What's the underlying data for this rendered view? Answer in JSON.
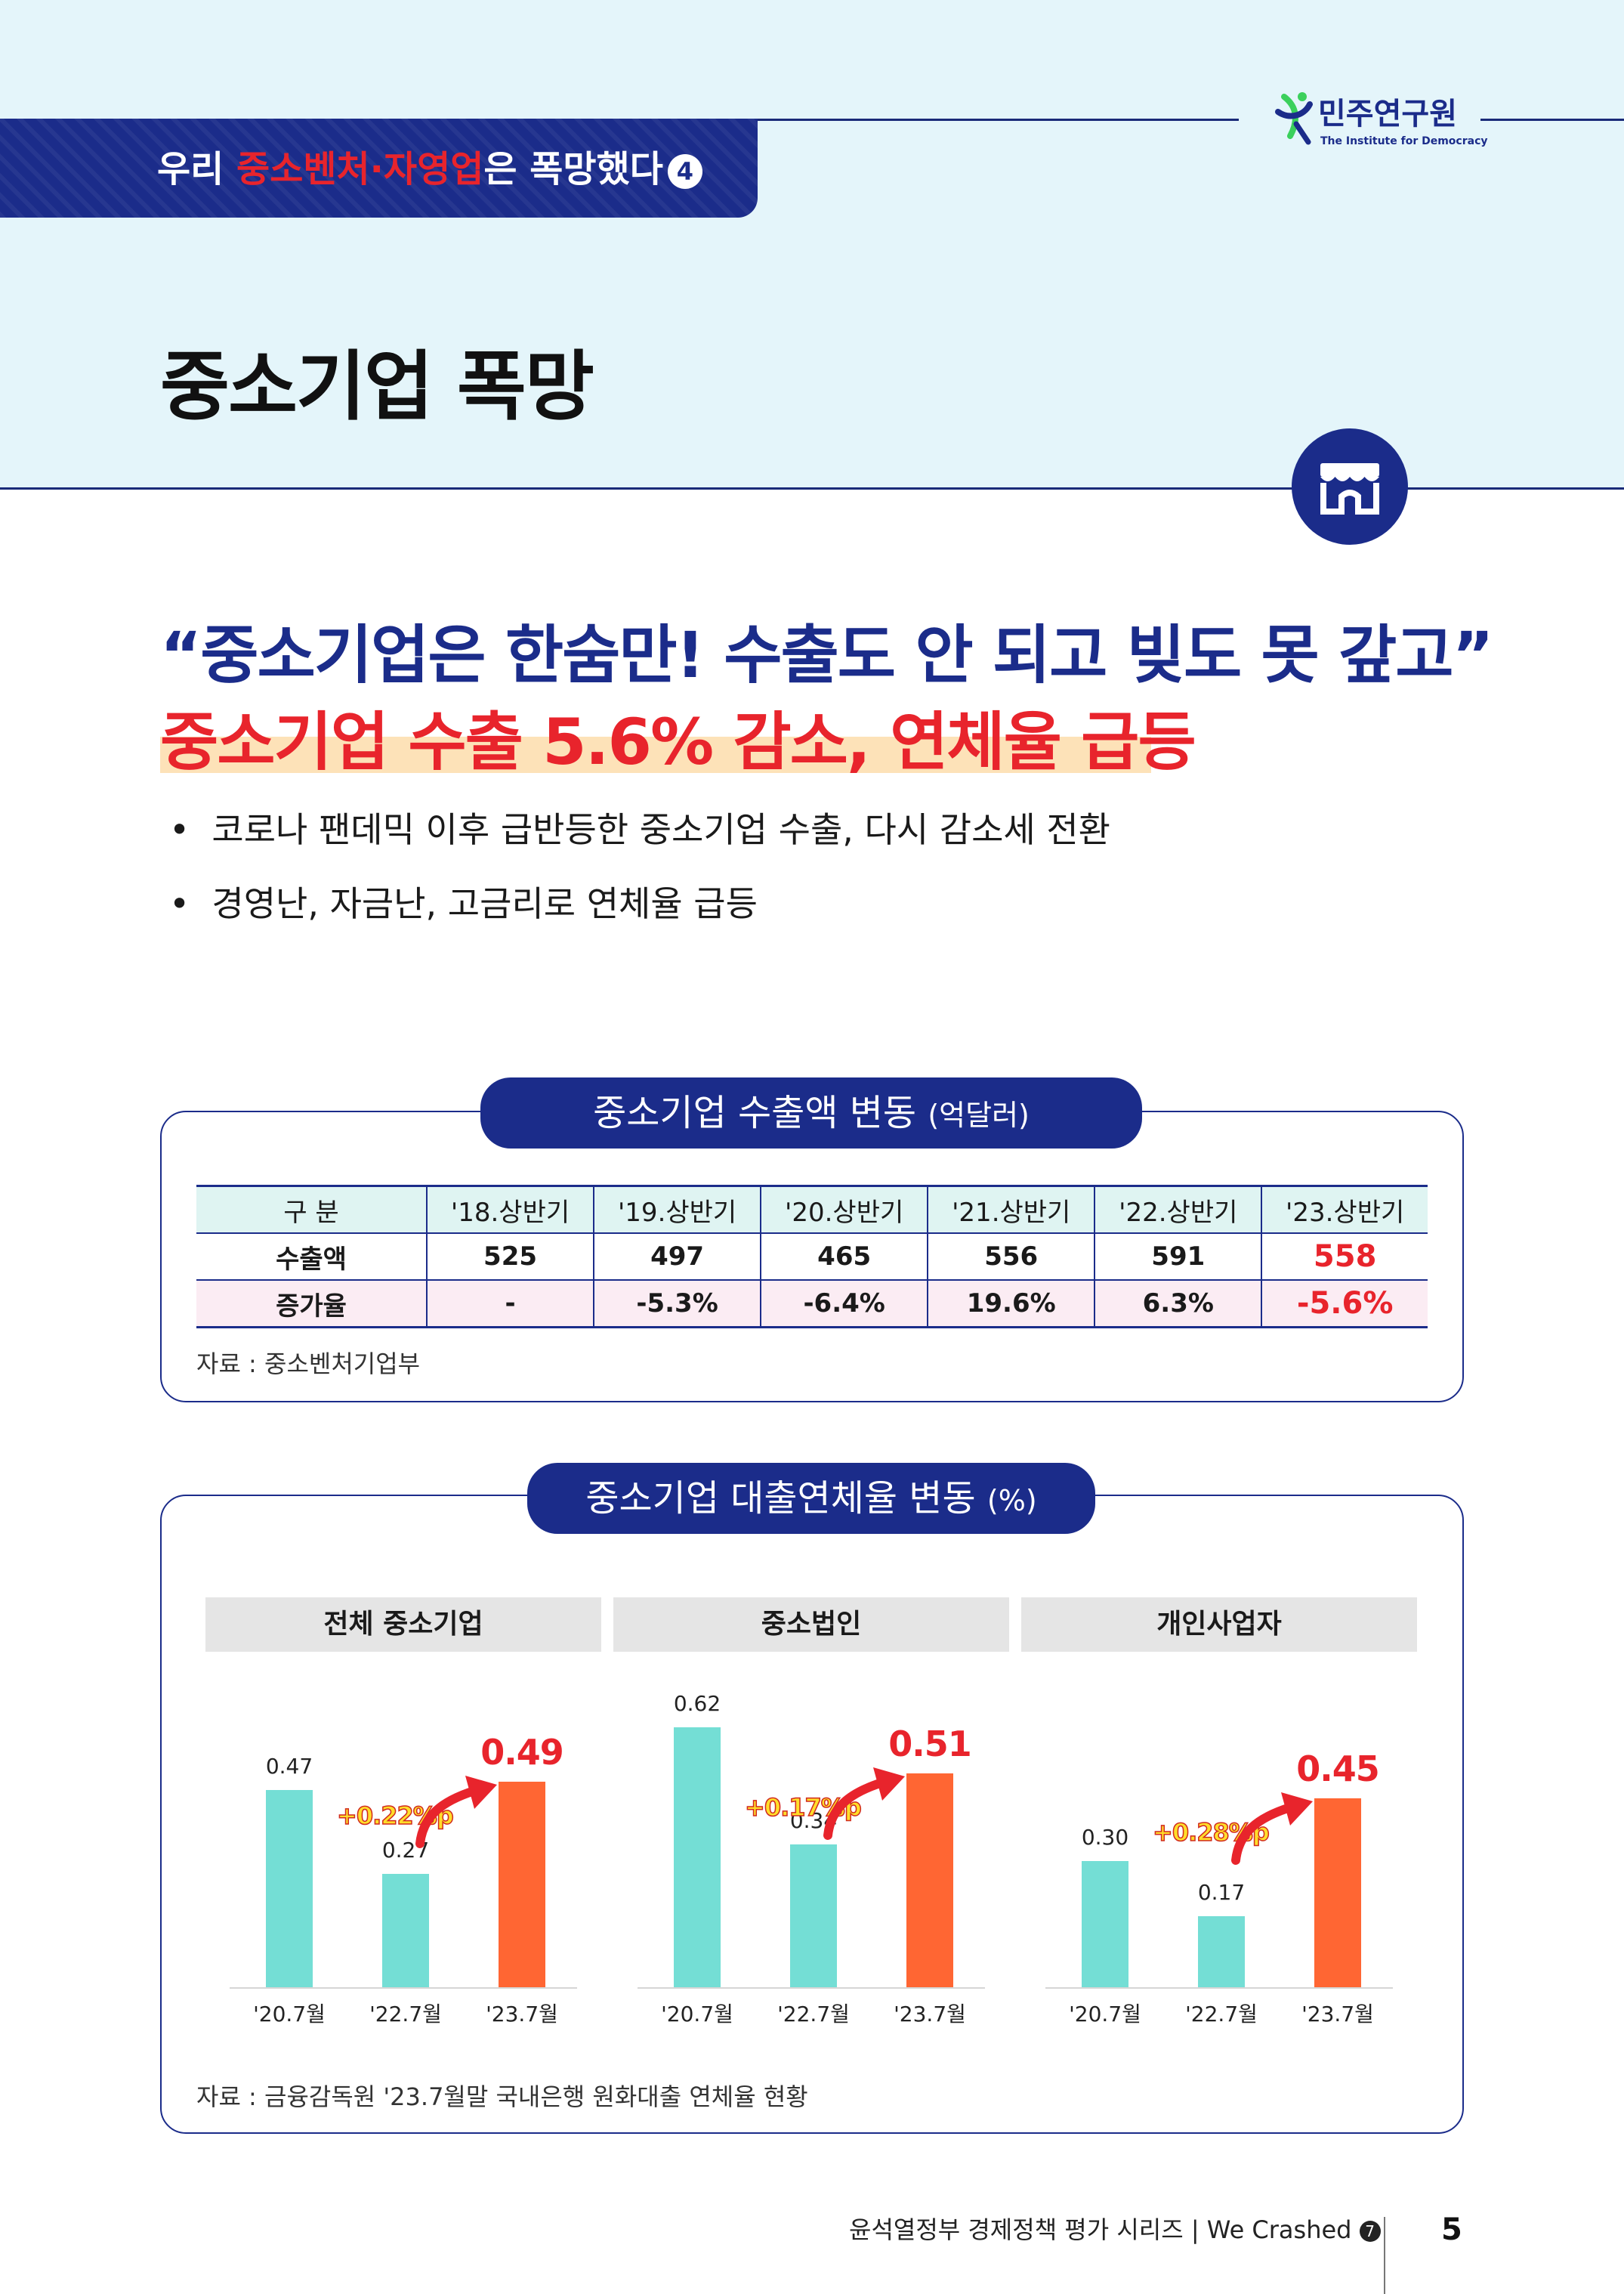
{
  "header": {
    "series_pre": "우리 ",
    "series_red": "중소벤처·자영업",
    "series_post": "은 폭망했다",
    "series_number": "4",
    "logo_name": "민주연구원",
    "logo_sub": "The Institute for Democracy",
    "page_title": "중소기업 폭망",
    "badge_icon": "storefront-icon"
  },
  "headline": {
    "quote": "“중소기업은 한숨만! 수출도 안 되고 빚도 못 갚고”",
    "main": "중소기업 수출 5.6% 감소, 연체율 급등"
  },
  "bullets": [
    "코로나 팬데믹 이후 급반등한 중소기업 수출, 다시 감소세 전환",
    "경영난, 자금난, 고금리로 연체율 급등"
  ],
  "export_panel": {
    "title": "중소기업 수출액 변동",
    "unit": "(억달러)",
    "table": {
      "header": [
        "구   분",
        "'18.상반기",
        "'19.상반기",
        "'20.상반기",
        "'21.상반기",
        "'22.상반기",
        "'23.상반기"
      ],
      "rows": [
        [
          "수출액",
          "525",
          "497",
          "465",
          "556",
          "591",
          "558"
        ],
        [
          "증가율",
          "-",
          "-5.3%",
          "-6.4%",
          "19.6%",
          "6.3%",
          "-5.6%"
        ]
      ]
    },
    "source": "자료 : 중소벤처기업부"
  },
  "delinquency_panel": {
    "title": "중소기업 대출연체율 변동",
    "unit": "(%)",
    "source": "자료 : 금융감독원 '23.7월말 국내은행 원화대출 연체율 현황"
  },
  "chart_data": [
    {
      "type": "bar",
      "title": "전체 중소기업",
      "categories": [
        "'20.7월",
        "'22.7월",
        "'23.7월"
      ],
      "values": [
        0.47,
        0.27,
        0.49
      ],
      "annotation": "+0.22%p",
      "colors": [
        "#74ded5",
        "#74ded5",
        "#ff6633"
      ]
    },
    {
      "type": "bar",
      "title": "중소법인",
      "categories": [
        "'20.7월",
        "'22.7월",
        "'23.7월"
      ],
      "values": [
        0.62,
        0.34,
        0.51
      ],
      "annotation": "+0.17%p",
      "colors": [
        "#74ded5",
        "#74ded5",
        "#ff6633"
      ]
    },
    {
      "type": "bar",
      "title": "개인사업자",
      "categories": [
        "'20.7월",
        "'22.7월",
        "'23.7월"
      ],
      "values": [
        0.3,
        0.17,
        0.45
      ],
      "annotation": "+0.28%p",
      "colors": [
        "#74ded5",
        "#74ded5",
        "#ff6633"
      ]
    }
  ],
  "footer": {
    "series_text": "윤석열정부 경제정책 평가 시리즈 |  We Crashed",
    "series_num": "7",
    "page_number": "5"
  }
}
